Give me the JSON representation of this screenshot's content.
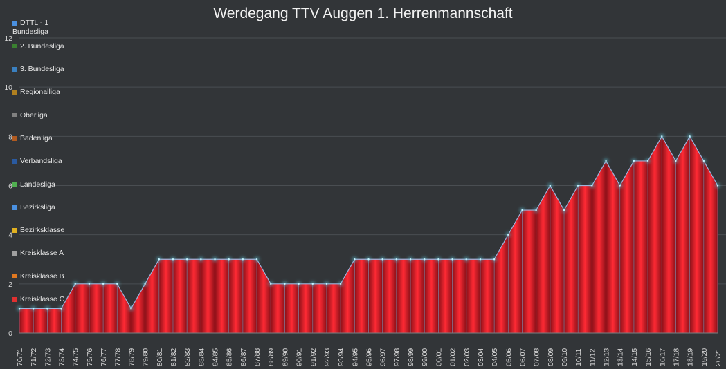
{
  "chart_data": {
    "type": "area",
    "title": "Werdegang TTV Auggen 1. Herrenmannschaft",
    "xlabel": "",
    "ylabel": "",
    "ylim": [
      0,
      12
    ],
    "yticks": [
      0,
      2,
      4,
      6,
      8,
      10,
      12
    ],
    "grid": true,
    "legend_position": "left",
    "categories": [
      "70/71",
      "71/72",
      "72/73",
      "73/74",
      "74/75",
      "75/76",
      "76/77",
      "77/78",
      "78/79",
      "79/80",
      "80/81",
      "81/82",
      "82/83",
      "83/84",
      "84/85",
      "85/86",
      "86/87",
      "87/88",
      "88/89",
      "89/90",
      "90/91",
      "91/92",
      "92/93",
      "93/94",
      "94/95",
      "95/96",
      "96/97",
      "97/98",
      "98/99",
      "99/00",
      "00/01",
      "01/02",
      "02/03",
      "03/04",
      "04/05",
      "05/06",
      "06/07",
      "07/08",
      "08/09",
      "09/10",
      "10/11",
      "11/12",
      "12/13",
      "13/14",
      "14/15",
      "15/16",
      "16/17",
      "17/18",
      "18/19",
      "19/20",
      "20/21"
    ],
    "values": [
      1,
      1,
      1,
      1,
      2,
      2,
      2,
      2,
      1,
      2,
      3,
      3,
      3,
      3,
      3,
      3,
      3,
      3,
      2,
      2,
      2,
      2,
      2,
      2,
      3,
      3,
      3,
      3,
      3,
      3,
      3,
      3,
      3,
      3,
      3,
      4,
      5,
      5,
      6,
      5,
      6,
      6,
      7,
      6,
      7,
      7,
      8,
      7,
      8,
      7,
      6
    ],
    "fill_color": "#e0202a",
    "legend": [
      {
        "label": "Kreisklasse C",
        "color": "#e03030"
      },
      {
        "label": "Kreisklasse B",
        "color": "#e07820"
      },
      {
        "label": "Kreisklasse A",
        "color": "#a0a0a0"
      },
      {
        "label": "Bezirksklasse",
        "color": "#e0b020"
      },
      {
        "label": "Bezirksliga",
        "color": "#4a90e0"
      },
      {
        "label": "Landesliga",
        "color": "#50b050"
      },
      {
        "label": "Verbandsliga",
        "color": "#2a5aa0"
      },
      {
        "label": "Badenliga",
        "color": "#b05a20"
      },
      {
        "label": "Oberliga",
        "color": "#808080"
      },
      {
        "label": "Regionalliga",
        "color": "#b08020"
      },
      {
        "label": "3. Bundesliga",
        "color": "#3a80c0"
      },
      {
        "label": "2. Bundesliga",
        "color": "#3a8030"
      },
      {
        "label": "DTTL - 1 Bundesliga",
        "color": "#4a90e0"
      }
    ]
  }
}
